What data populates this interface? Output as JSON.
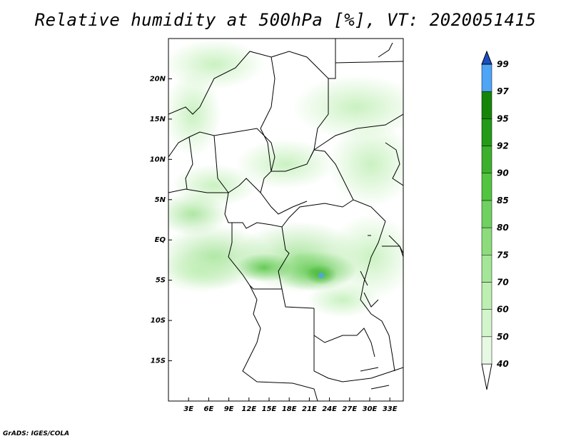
{
  "title": "Relative humidity at 500hPa [%], VT: 2020051415",
  "credit": "GrADS: IGES/COLA",
  "map": {
    "projection": "lat-lon",
    "lon_range": [
      0,
      35
    ],
    "lat_range": [
      -20,
      25
    ],
    "x_tick_labels": [
      "3E",
      "6E",
      "9E",
      "12E",
      "15E",
      "18E",
      "21E",
      "24E",
      "27E",
      "30E",
      "33E"
    ],
    "x_tick_values": [
      3,
      6,
      9,
      12,
      15,
      18,
      21,
      24,
      27,
      30,
      33
    ],
    "y_tick_labels": [
      "20N",
      "15N",
      "10N",
      "5N",
      "EQ",
      "5S",
      "10S",
      "15S"
    ],
    "y_tick_values": [
      20,
      15,
      10,
      5,
      0,
      -5,
      -10,
      -15
    ]
  },
  "colorbar": {
    "levels": [
      "40",
      "50",
      "60",
      "70",
      "75",
      "80",
      "85",
      "90",
      "92",
      "95",
      "97",
      "99"
    ],
    "colors": [
      "#ffffff",
      "#e6f9e3",
      "#d3f5cc",
      "#bdeeb2",
      "#a4e698",
      "#8cdc7c",
      "#6fd160",
      "#52c43f",
      "#3caf2d",
      "#239a18",
      "#148509",
      "#4ea4f5",
      "#2a7fe6",
      "#1d62d0",
      "#1a4fbf"
    ]
  }
}
